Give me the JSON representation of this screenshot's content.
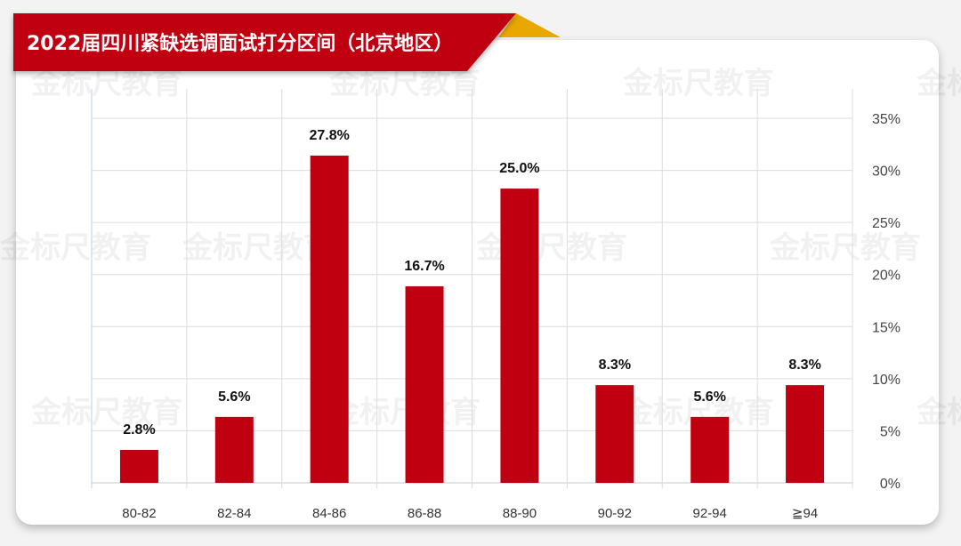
{
  "title": "2022届四川紧缺选调面试打分区间（北京地区）",
  "watermark": "金标尺教育",
  "colors": {
    "bar": "#c00010",
    "banner": "#c00010",
    "banner_fold": "#e8a800",
    "grid": "#dcdcdc"
  },
  "chart_data": {
    "type": "bar",
    "title": "2022届四川紧缺选调面试打分区间（北京地区）",
    "categories": [
      "80-82",
      "82-84",
      "84-86",
      "86-88",
      "88-90",
      "90-92",
      "92-94",
      "≧94"
    ],
    "values": [
      2.8,
      5.6,
      27.8,
      16.7,
      25.0,
      8.3,
      5.6,
      8.3
    ],
    "data_labels": [
      "2.8%",
      "5.6%",
      "27.8%",
      "16.7%",
      "25.0%",
      "8.3%",
      "5.6%",
      "8.3%"
    ],
    "y_ticks": [
      "0%",
      "5%",
      "10%",
      "15%",
      "20%",
      "25%",
      "30%",
      "35%"
    ],
    "ylim": [
      0,
      35
    ],
    "y_axis_position": "right",
    "xlabel": "",
    "ylabel": "",
    "grid": true,
    "legend": "none"
  }
}
